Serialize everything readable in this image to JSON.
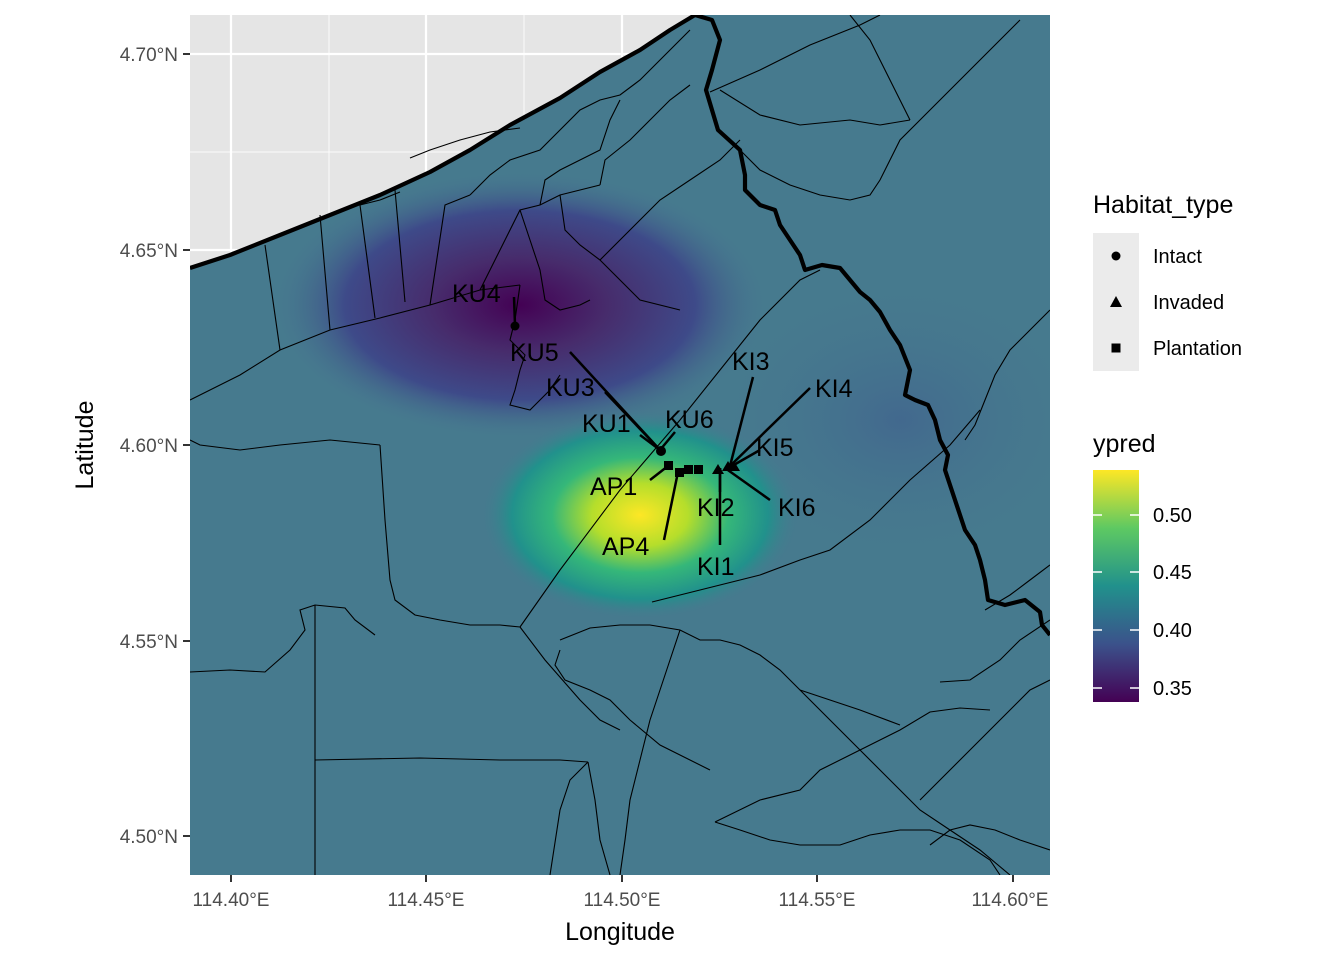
{
  "map": {
    "x_axis_title": "Longitude",
    "y_axis_title": "Latitude",
    "x_ticks": [
      "114.40°E",
      "114.45°E",
      "114.50°E",
      "114.55°E",
      "114.60°E"
    ],
    "y_ticks": [
      "4.70°N",
      "4.65°N",
      "4.60°N",
      "4.55°N",
      "4.50°N"
    ],
    "x_range": [
      114.39,
      114.61
    ],
    "y_range": [
      4.49,
      4.71
    ],
    "sites": [
      {
        "label": "KU4",
        "habitat": "Intact"
      },
      {
        "label": "KU5",
        "habitat": "Intact"
      },
      {
        "label": "KU3",
        "habitat": "Intact"
      },
      {
        "label": "KU1",
        "habitat": "Intact"
      },
      {
        "label": "KU6",
        "habitat": "Intact"
      },
      {
        "label": "KI3",
        "habitat": "Invaded"
      },
      {
        "label": "KI4",
        "habitat": "Invaded"
      },
      {
        "label": "KI5",
        "habitat": "Invaded"
      },
      {
        "label": "KI2",
        "habitat": "Invaded"
      },
      {
        "label": "KI6",
        "habitat": "Invaded"
      },
      {
        "label": "KI1",
        "habitat": "Invaded"
      },
      {
        "label": "AP1",
        "habitat": "Plantation"
      },
      {
        "label": "AP4",
        "habitat": "Plantation"
      }
    ]
  },
  "legend": {
    "shape_title": "Habitat_type",
    "shape_items": [
      {
        "label": "Intact",
        "icon": "circle"
      },
      {
        "label": "Invaded",
        "icon": "triangle"
      },
      {
        "label": "Plantation",
        "icon": "square"
      }
    ],
    "color_title": "ypred",
    "color_ticks": [
      "0.50",
      "0.45",
      "0.40",
      "0.35"
    ]
  },
  "colors": {
    "background_panel": "#e5e5e5",
    "base_fill": "#467a8e",
    "low": "#440154",
    "high": "#fde725"
  }
}
